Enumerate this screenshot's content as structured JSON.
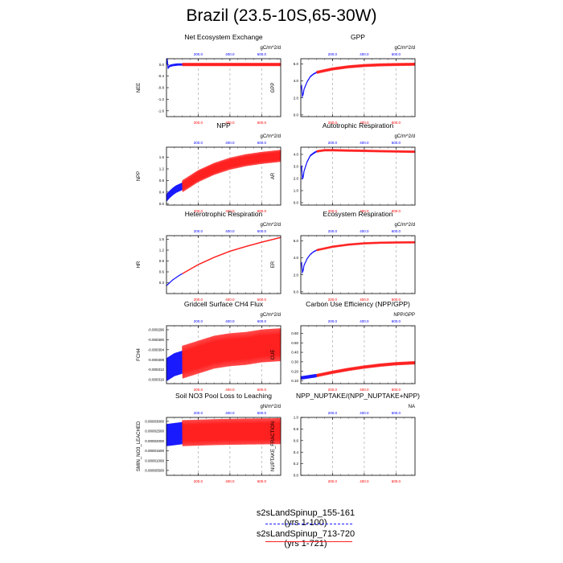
{
  "page": {
    "title": "Brazil (23.5-10S,65-30W)"
  },
  "colors": {
    "run1": "#1a1aff",
    "run2": "#ff2020",
    "grid": "#aaaaaa",
    "topticks": "#0000ff",
    "bottomticks": "#ff0000"
  },
  "legend": [
    {
      "label": "s2sLandSpinup_155-161 (yrs 1-100)",
      "color": "#1a1aff",
      "style": "dashed"
    },
    {
      "label": "s2sLandSpinup_713-720 (yrs 1-721)",
      "color": "#ff2020",
      "style": "solid"
    }
  ],
  "chart_data": [
    {
      "type": "line",
      "title": "Net Ecosystem Exchange",
      "ylabel": "NEE",
      "units": "gC/m^2/d",
      "ylim": [
        -1.8,
        0.2
      ],
      "yticks": [
        "0.0",
        "-0.4",
        "-0.8",
        "-1.2",
        "-1.6"
      ],
      "ytick_values": [
        0.0,
        -0.4,
        -0.8,
        -1.2,
        -1.6
      ],
      "xlim": [
        0,
        720
      ],
      "xticks_top": [
        "200.0",
        "400.0",
        "600.0"
      ],
      "xticks_bottom": [
        "200.0",
        "400.0",
        "600.0"
      ],
      "series": [
        {
          "name": "s2sLandSpinup_155-161",
          "x": [
            0,
            5,
            10,
            20,
            40,
            70,
            100
          ],
          "values": [
            0.0,
            0.18,
            -0.12,
            -0.05,
            -0.02,
            0.0,
            0.0
          ],
          "amp": 0.03
        },
        {
          "name": "s2sLandSpinup_713-720",
          "x": [
            100,
            300,
            500,
            720
          ],
          "values": [
            0.0,
            0.0,
            0.0,
            0.0
          ],
          "amp": 0.05
        }
      ]
    },
    {
      "type": "line",
      "title": "GPP",
      "ylabel": "GPP",
      "units": "gC/m^2/d",
      "ylim": [
        -0.2,
        6.6
      ],
      "yticks": [
        "0.0",
        "2.0",
        "4.0",
        "6.0"
      ],
      "ytick_values": [
        0.0,
        2.0,
        4.0,
        6.0
      ],
      "xlim": [
        0,
        720
      ],
      "xticks_top": [
        "200.0",
        "400.0",
        "600.0"
      ],
      "xticks_bottom": [
        "200.0",
        "400.0",
        "600.0"
      ],
      "series": [
        {
          "name": "s2sLandSpinup_155-161",
          "x": [
            0,
            5,
            10,
            15,
            20,
            40,
            60,
            80,
            100
          ],
          "values": [
            3.2,
            3.4,
            2.2,
            2.4,
            3.0,
            3.9,
            4.5,
            4.8,
            5.0
          ],
          "amp": 0.05
        },
        {
          "name": "s2sLandSpinup_713-720",
          "x": [
            100,
            200,
            300,
            400,
            500,
            600,
            720
          ],
          "values": [
            5.0,
            5.4,
            5.65,
            5.8,
            5.88,
            5.92,
            5.95
          ],
          "amp": 0.15
        }
      ]
    },
    {
      "type": "line",
      "title": "NPP",
      "ylabel": "NPP",
      "units": "gC/m^2/d",
      "ylim": [
        -0.05,
        1.95
      ],
      "yticks": [
        "0.0",
        "0.4",
        "0.8",
        "1.2",
        "1.6"
      ],
      "ytick_values": [
        0.0,
        0.4,
        0.8,
        1.2,
        1.6
      ],
      "xlim": [
        0,
        720
      ],
      "xticks_top": [
        "200.0",
        "400.0",
        "600.0"
      ],
      "xticks_bottom": [
        "200.0",
        "400.0",
        "600.0"
      ],
      "series": [
        {
          "name": "s2sLandSpinup_155-161",
          "x": [
            0,
            20,
            40,
            60,
            80,
            100
          ],
          "values": [
            0.2,
            0.32,
            0.42,
            0.5,
            0.55,
            0.6
          ],
          "amp": 0.12
        },
        {
          "name": "s2sLandSpinup_713-720",
          "x": [
            100,
            200,
            300,
            400,
            500,
            600,
            720
          ],
          "values": [
            0.6,
            0.95,
            1.2,
            1.38,
            1.5,
            1.58,
            1.65
          ],
          "amp": 0.2
        }
      ]
    },
    {
      "type": "line",
      "title": "Autotrophic Respiration",
      "ylabel": "AR",
      "units": "gC/m^2/d",
      "ylim": [
        -0.2,
        4.6
      ],
      "yticks": [
        "0.0",
        "1.0",
        "2.0",
        "3.0",
        "4.0"
      ],
      "ytick_values": [
        0.0,
        1.0,
        2.0,
        3.0,
        4.0
      ],
      "xlim": [
        0,
        720
      ],
      "xticks_top": [
        "200.0",
        "400.0",
        "600.0"
      ],
      "xticks_bottom": [
        "200.0",
        "400.0",
        "600.0"
      ],
      "series": [
        {
          "name": "s2sLandSpinup_155-161",
          "x": [
            0,
            5,
            10,
            15,
            20,
            40,
            60,
            80,
            100
          ],
          "values": [
            2.9,
            3.0,
            2.0,
            2.1,
            2.6,
            3.4,
            3.9,
            4.1,
            4.25
          ],
          "amp": 0.05
        },
        {
          "name": "s2sLandSpinup_713-720",
          "x": [
            100,
            150,
            200,
            300,
            400,
            500,
            600,
            720
          ],
          "values": [
            4.25,
            4.35,
            4.35,
            4.32,
            4.3,
            4.27,
            4.25,
            4.22
          ],
          "amp": 0.08
        }
      ]
    },
    {
      "type": "line",
      "title": "Heterotrophic Respiration",
      "ylabel": "HR",
      "units": "gC/m^2/d",
      "ylim": [
        0.0,
        1.6
      ],
      "yticks": [
        "0.3",
        "0.6",
        "0.9",
        "1.2",
        "1.5"
      ],
      "ytick_values": [
        0.3,
        0.6,
        0.9,
        1.2,
        1.5
      ],
      "xlim": [
        0,
        720
      ],
      "xticks_top": [
        "200.0",
        "400.0",
        "600.0"
      ],
      "xticks_bottom": [
        "200.0",
        "400.0",
        "600.0"
      ],
      "series": [
        {
          "name": "s2sLandSpinup_155-161",
          "x": [
            0,
            20,
            40,
            60,
            80,
            100
          ],
          "values": [
            0.22,
            0.3,
            0.38,
            0.44,
            0.5,
            0.55
          ],
          "amp": 0.0
        },
        {
          "name": "s2sLandSpinup_713-720",
          "x": [
            100,
            200,
            300,
            400,
            500,
            600,
            720
          ],
          "values": [
            0.55,
            0.8,
            1.0,
            1.17,
            1.3,
            1.42,
            1.55
          ],
          "amp": 0.01
        }
      ]
    },
    {
      "type": "line",
      "title": "Ecosystem Respiration",
      "ylabel": "ER",
      "units": "gC/m^2/d",
      "ylim": [
        -0.2,
        6.6
      ],
      "yticks": [
        "0.0",
        "2.0",
        "4.0",
        "6.0"
      ],
      "ytick_values": [
        0.0,
        2.0,
        4.0,
        6.0
      ],
      "xlim": [
        0,
        720
      ],
      "xticks_top": [
        "200.0",
        "400.0",
        "600.0"
      ],
      "xticks_bottom": [
        "200.0",
        "400.0",
        "600.0"
      ],
      "series": [
        {
          "name": "s2sLandSpinup_155-161",
          "x": [
            0,
            5,
            10,
            15,
            20,
            40,
            60,
            80,
            100
          ],
          "values": [
            3.3,
            3.4,
            2.3,
            2.5,
            3.1,
            3.9,
            4.4,
            4.7,
            4.9
          ],
          "amp": 0.04
        },
        {
          "name": "s2sLandSpinup_713-720",
          "x": [
            100,
            200,
            300,
            400,
            500,
            600,
            720
          ],
          "values": [
            4.9,
            5.3,
            5.55,
            5.7,
            5.77,
            5.8,
            5.82
          ],
          "amp": 0.1
        }
      ]
    },
    {
      "type": "line",
      "title": "Gridcell Surface CH4 Flux",
      "ylabel": "FCH4",
      "units": "gC/m^2/d",
      "ylim": [
        -0.0003176,
        -0.0002944
      ],
      "yticks": [
        "-0.000296",
        "-0.000300",
        "-0.000304",
        "-0.000308",
        "-0.000312",
        "-0.000316"
      ],
      "ytick_values": [
        -0.000296,
        -0.0003,
        -0.000304,
        -0.000308,
        -0.000312,
        -0.000316
      ],
      "xlim": [
        0,
        720
      ],
      "xticks_top": [
        "200.0",
        "400.0",
        "600.0"
      ],
      "xticks_bottom": [
        "200.0",
        "400.0",
        "600.0"
      ],
      "series": [
        {
          "name": "s2sLandSpinup_155-161",
          "x": [
            0,
            50,
            100
          ],
          "values": [
            -0.000312,
            -0.00031,
            -0.000309
          ],
          "amp": 4.5e-06
        },
        {
          "name": "s2sLandSpinup_713-720",
          "x": [
            100,
            200,
            300,
            400,
            500,
            600,
            720
          ],
          "values": [
            -0.000309,
            -0.000307,
            -0.000305,
            -0.000304,
            -0.0003035,
            -0.0003025,
            -0.000302
          ],
          "amp": 6.5e-06
        }
      ]
    },
    {
      "type": "line",
      "title": "Carbon Use Efficiency (NPP/GPP)",
      "ylabel": "CUE",
      "units": "NPP/GPP",
      "ylim": [
        0.07,
        0.68
      ],
      "yticks": [
        "0.10",
        "0.20",
        "0.30",
        "0.40",
        "0.50",
        "0.60"
      ],
      "ytick_values": [
        0.1,
        0.2,
        0.3,
        0.4,
        0.5,
        0.6
      ],
      "xlim": [
        0,
        720
      ],
      "xticks_top": [
        "200.0",
        "400.0",
        "600.0"
      ],
      "xticks_bottom": [
        "200.0",
        "400.0",
        "600.0"
      ],
      "series": [
        {
          "name": "s2sLandSpinup_155-161",
          "x": [
            0,
            20,
            40,
            60,
            80,
            100
          ],
          "values": [
            0.13,
            0.135,
            0.14,
            0.145,
            0.15,
            0.155
          ],
          "amp": 0.015
        },
        {
          "name": "s2sLandSpinup_713-720",
          "x": [
            100,
            200,
            300,
            400,
            500,
            600,
            720
          ],
          "values": [
            0.155,
            0.19,
            0.22,
            0.245,
            0.265,
            0.28,
            0.29
          ],
          "amp": 0.015
        }
      ]
    },
    {
      "type": "line",
      "title": "Soil NO3 Pool Loss to Leaching",
      "ylabel": "SMIN_NO3_LEACHED",
      "units": "gN/m^2/d",
      "ylim": [
        2.5e-06,
        3.2e-05
      ],
      "yticks": [
        "0.00003000",
        "0.00002500",
        "0.00002000",
        "0.00001500",
        "0.00001000",
        "0.00000500"
      ],
      "ytick_values": [
        3e-05,
        2.5e-05,
        2e-05,
        1.5e-05,
        1e-05,
        5e-06
      ],
      "xlim": [
        0,
        720
      ],
      "xticks_top": [
        "200.0",
        "400.0",
        "600.0"
      ],
      "xticks_bottom": [
        "200.0",
        "400.0",
        "600.0"
      ],
      "series": [
        {
          "name": "s2sLandSpinup_155-161",
          "x": [
            0,
            50,
            100
          ],
          "values": [
            2.3e-05,
            2.35e-05,
            2.4e-05
          ],
          "amp": 5.5e-06
        },
        {
          "name": "s2sLandSpinup_713-720",
          "x": [
            100,
            300,
            500,
            720
          ],
          "values": [
            2.4e-05,
            2.45e-05,
            2.48e-05,
            2.5e-05
          ],
          "amp": 6.5e-06
        }
      ]
    },
    {
      "type": "line",
      "title": "NPP_NUPTAKE/(NPP_NUPTAKE+NPP)",
      "ylabel": "NUPTAKE_FRACTION",
      "units": "NA",
      "ylim": [
        0.0,
        1.0
      ],
      "yticks": [
        "0.0",
        "0.2",
        "0.4",
        "0.6",
        "0.8",
        "1.0"
      ],
      "ytick_values": [
        0.0,
        0.2,
        0.4,
        0.6,
        0.8,
        1.0
      ],
      "xlim": [
        0,
        720
      ],
      "xticks_top": [
        "200.0",
        "400.0",
        "600.0"
      ],
      "xticks_bottom": [
        "200.0",
        "400.0",
        "600.0"
      ],
      "series": []
    }
  ]
}
